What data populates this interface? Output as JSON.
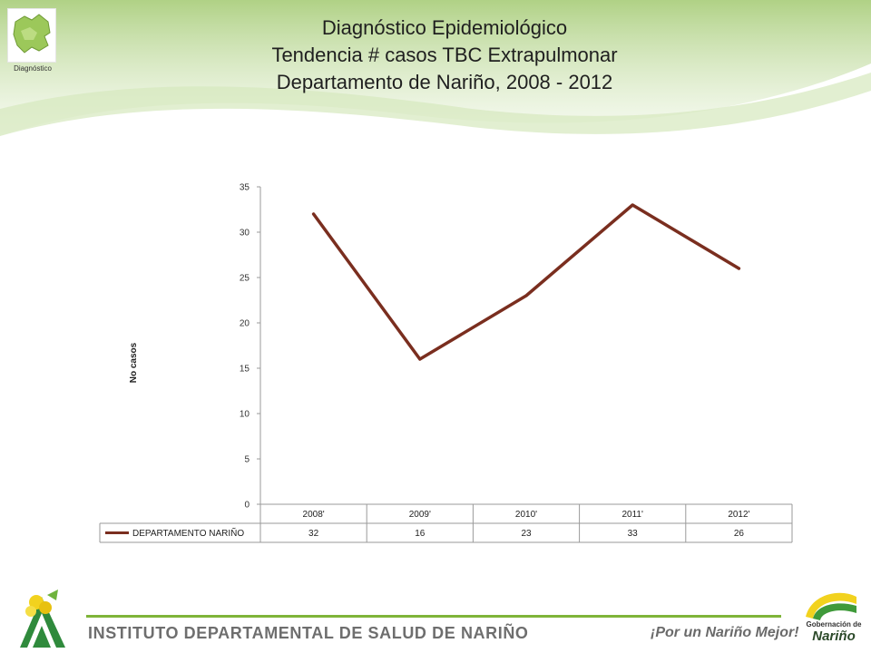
{
  "header": {
    "title_lines": [
      "Diagnóstico Epidemiológico",
      "Tendencia # casos TBC Extrapulmonar",
      "Departamento de Nariño,  2008 - 2012"
    ],
    "logo_caption": "Diagnóstico"
  },
  "chart_data": {
    "type": "line",
    "title": "",
    "ylabel": "No casos",
    "xlabel": "",
    "categories": [
      "2008'",
      "2009'",
      "2010'",
      "2011'",
      "2012'"
    ],
    "series": [
      {
        "name": "DEPARTAMENTO NARIÑO",
        "values": [
          32,
          16,
          23,
          33,
          26
        ],
        "color": "#7a2e1f"
      }
    ],
    "ylim": [
      0,
      35
    ],
    "yticks": [
      "0",
      "5",
      "10",
      "15",
      "20",
      "25",
      "30",
      "35"
    ],
    "grid": false,
    "legend": "data-table-left"
  },
  "footer": {
    "institute": "INSTITUTO DEPARTAMENTAL DE SALUD DE NARIÑO",
    "slogan": "¡Por un Nariño Mejor!",
    "gob_label_top": "Gobernación de",
    "gob_label_bottom": "Nariño"
  },
  "colors": {
    "accent_green": "#7fb439",
    "header_green": "#b6d58a",
    "series": "#7a2e1f"
  }
}
